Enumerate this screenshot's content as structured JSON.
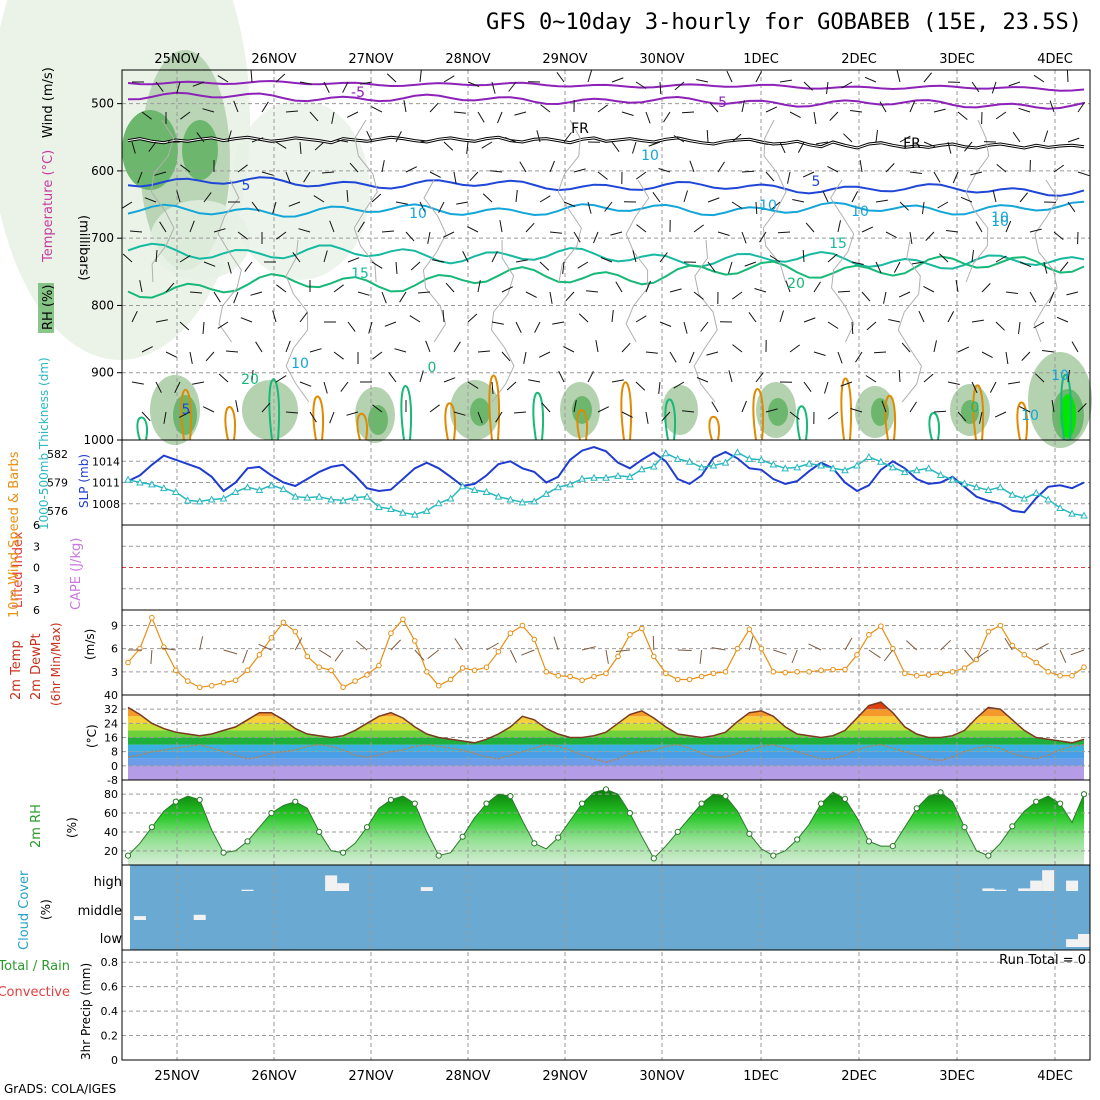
{
  "title": "GFS 0~10day 3-hourly for GOBABEB (15E, 23.5S)",
  "footer": "GrADS: COLA/IGES",
  "date_labels": [
    "25NOV",
    "26NOV",
    "27NOV",
    "28NOV",
    "29NOV",
    "30NOV",
    "1DEC",
    "2DEC",
    "3DEC",
    "4DEC"
  ],
  "colors": {
    "rh_light": "#e6f0e4",
    "rh_mid": "#b4d2b0",
    "rh_dark": "#6db66d",
    "rh_bright": "#00e600",
    "temp_purple": "#8c22b8",
    "temp_blue": "#1f46d6",
    "temp_cyan": "#14a6d8",
    "temp_teal": "#17b9a0",
    "temp_green": "#17b878",
    "temp_orange": "#e08a00",
    "slp": "#1f3ccf",
    "thickness": "#28b8c0",
    "wind10": "#e88f14",
    "cloud_bg": "#6aaad2",
    "cape": "#c878e0",
    "lifted": "#e04040"
  },
  "chart_data": [
    {
      "type": "contour",
      "panel": "upper-air",
      "ylabel_left": [
        "RH (%)",
        "Temperature (°C)",
        "Wind (m/s)"
      ],
      "ylabel_right": "(millibars)",
      "y_ticks": [
        "500",
        "600",
        "700",
        "800",
        "900",
        "1000"
      ],
      "ylim": [
        450,
        1000
      ],
      "contour_labels": [
        "-5",
        "-5",
        "FR",
        "FR",
        "5",
        "5",
        "10",
        "10",
        "10",
        "15",
        "15",
        "20",
        "20",
        "0",
        "5",
        "0",
        "10",
        "10",
        "10",
        "10",
        "10",
        "10"
      ],
      "freezing_level_mb": [
        555,
        552,
        556,
        558,
        554,
        556,
        553,
        551,
        555,
        552,
        550,
        553,
        556,
        554,
        551,
        553,
        555,
        558,
        552,
        554,
        556,
        553,
        550,
        552,
        555,
        557,
        553,
        551,
        554,
        556,
        552,
        550,
        555,
        557,
        553,
        552,
        555,
        558,
        553,
        551,
        556,
        554,
        552,
        555,
        557,
        553,
        551,
        555,
        558,
        560,
        556,
        554,
        553,
        557,
        560,
        559,
        556,
        561,
        564,
        557,
        562,
        566,
        560,
        558,
        562,
        565,
        563,
        565,
        562,
        560,
        564,
        566,
        562,
        560,
        563,
        566,
        562,
        565,
        563,
        562,
        564
      ]
    },
    {
      "type": "line",
      "panel": "slp-thickness",
      "ylabel_left": "1000-500mb Thickness (dm)",
      "ylabel_right": "SLP (mb)",
      "ticks_left": [
        "582",
        "579",
        "576"
      ],
      "ticks_right": [
        "1014",
        "1011",
        "1008"
      ],
      "ylim_slp": [
        1005,
        1017
      ],
      "ylim_thickness": [
        574.5,
        583.5
      ],
      "series": [
        {
          "name": "SLP (mb)",
          "values": [
            1011.2,
            1012.0,
            1013.5,
            1014.8,
            1014.2,
            1013.6,
            1013.0,
            1011.8,
            1009.8,
            1011.0,
            1013.0,
            1013.2,
            1012.0,
            1011.0,
            1010.5,
            1011.5,
            1012.5,
            1013.2,
            1013.5,
            1012.0,
            1010.2,
            1009.8,
            1010.0,
            1011.5,
            1013.0,
            1013.8,
            1013.0,
            1011.8,
            1010.5,
            1010.8,
            1012.0,
            1013.6,
            1014.0,
            1013.0,
            1012.5,
            1011.0,
            1011.8,
            1014.2,
            1015.5,
            1016.0,
            1015.4,
            1013.8,
            1013.0,
            1014.2,
            1015.2,
            1014.0,
            1011.5,
            1010.8,
            1012.0,
            1014.5,
            1015.3,
            1014.4,
            1013.0,
            1012.8,
            1011.5,
            1010.8,
            1011.2,
            1012.6,
            1013.8,
            1013.0,
            1011.0,
            1009.8,
            1010.6,
            1012.8,
            1014.0,
            1013.0,
            1011.5,
            1010.8,
            1011.0,
            1011.8,
            1010.4,
            1009.0,
            1008.4,
            1008.0,
            1007.0,
            1006.8,
            1008.8,
            1010.4,
            1010.6,
            1010.2,
            1011.0
          ]
        },
        {
          "name": "1000-500mb Thickness (dm)",
          "values": [
            579.3,
            579.0,
            578.8,
            578.4,
            578.0,
            577.1,
            577.0,
            577.2,
            577.3,
            578.0,
            578.5,
            578.2,
            578.7,
            578.3,
            577.5,
            577.4,
            577.5,
            577.2,
            577.1,
            577.4,
            577.5,
            576.4,
            576.2,
            575.8,
            575.6,
            576.0,
            576.8,
            577.3,
            578.6,
            578.2,
            578.0,
            577.5,
            577.2,
            576.9,
            577.0,
            577.8,
            578.5,
            578.8,
            579.4,
            579.5,
            579.5,
            579.7,
            579.6,
            580.4,
            580.7,
            582.1,
            581.5,
            581.2,
            580.6,
            580.8,
            581.1,
            582.2,
            581.5,
            581.4,
            580.9,
            580.5,
            580.6,
            581.0,
            580.8,
            580.5,
            580.3,
            580.8,
            581.7,
            581.2,
            580.6,
            580.1,
            580.3,
            580.5,
            579.8,
            579.3,
            578.9,
            578.5,
            578.2,
            578.5,
            577.7,
            577.3,
            577.9,
            577.2,
            576.3,
            575.7,
            575.5
          ]
        }
      ]
    },
    {
      "type": "line",
      "panel": "stability",
      "ylabel_left": "Lifted Index",
      "ylabel_right": "CAPE (J/kg)",
      "y_ticks": [
        "6",
        "3",
        "0",
        "3",
        "6"
      ],
      "ylim": [
        -6,
        6
      ],
      "series": [
        {
          "name": "Lifted Index",
          "values": [
            6,
            6,
            6,
            6,
            6,
            6,
            6,
            6,
            6,
            6,
            6,
            6,
            6,
            6,
            6,
            6,
            6,
            6,
            6,
            6,
            6,
            6,
            6,
            6,
            6,
            6,
            6,
            6,
            6,
            6,
            6,
            6,
            6,
            6,
            6,
            6,
            6,
            6,
            6,
            6,
            6,
            6,
            6,
            6,
            6,
            6,
            6,
            6,
            6,
            6,
            6,
            6,
            6,
            6,
            6,
            6,
            6,
            6,
            6,
            6,
            6,
            6,
            6,
            6,
            6,
            6,
            6,
            6,
            6,
            6,
            6,
            6,
            6,
            6,
            6,
            6,
            6,
            6,
            6,
            6,
            6
          ]
        }
      ]
    },
    {
      "type": "line",
      "panel": "wind10m",
      "ylabel_left": "10m Wind Speed & Barbs",
      "ylabel_right": "(m/s)",
      "y_ticks": [
        "9",
        "6",
        "3"
      ],
      "ylim": [
        0,
        11
      ],
      "series": [
        {
          "name": "10m Wind Speed",
          "values": [
            4.2,
            6.0,
            10.0,
            6.2,
            3.2,
            1.8,
            1.0,
            1.2,
            1.6,
            1.9,
            3.2,
            5.2,
            7.4,
            9.4,
            8.2,
            5.0,
            3.6,
            3.2,
            1.0,
            1.8,
            2.6,
            3.8,
            8.0,
            9.8,
            7.0,
            3.0,
            1.2,
            2.0,
            3.5,
            3.2,
            3.6,
            5.6,
            8.0,
            9.0,
            7.2,
            3.0,
            2.5,
            2.4,
            1.9,
            2.4,
            2.8,
            5.0,
            7.8,
            8.6,
            5.0,
            2.8,
            2.0,
            2.0,
            2.4,
            2.8,
            3.0,
            6.0,
            8.5,
            6.0,
            3.0,
            2.9,
            3.0,
            3.0,
            3.2,
            3.3,
            3.3,
            5.2,
            7.8,
            8.9,
            6.0,
            2.8,
            2.5,
            2.6,
            2.8,
            3.0,
            3.5,
            4.6,
            8.2,
            9.0,
            6.4,
            5.2,
            4.2,
            3.0,
            2.5,
            2.5,
            3.6
          ]
        }
      ]
    },
    {
      "type": "area",
      "panel": "temperature",
      "ylabel_left": [
        "2m Temp",
        "2m DewPt",
        "(6hr Min/Max)"
      ],
      "ylabel_right": "(°C)",
      "y_ticks": [
        "40",
        "32",
        "24",
        "16",
        "8",
        "0",
        "-8"
      ],
      "ylim": [
        -8,
        40
      ],
      "series": [
        {
          "name": "2m Temp",
          "values": [
            33,
            29,
            24,
            21,
            19,
            18,
            17,
            18,
            20,
            22,
            26,
            30,
            30,
            26,
            21,
            18,
            17,
            16,
            17,
            20,
            24,
            28,
            30,
            27,
            22,
            18,
            16,
            15,
            14,
            13,
            15,
            18,
            22,
            28,
            26,
            21,
            18,
            16,
            16,
            17,
            19,
            24,
            29,
            31,
            27,
            22,
            18,
            17,
            16,
            17,
            19,
            25,
            30,
            31,
            28,
            22,
            18,
            17,
            16,
            17,
            20,
            27,
            34,
            36,
            30,
            22,
            18,
            16,
            16,
            17,
            20,
            27,
            33,
            32,
            26,
            20,
            16,
            15,
            14,
            13,
            15
          ]
        },
        {
          "name": "2m DewPt",
          "values": [
            5,
            6,
            8,
            9,
            10,
            11,
            12,
            10,
            8,
            6,
            4,
            5,
            7,
            8,
            9,
            11,
            12,
            11,
            9,
            6,
            5,
            6,
            8,
            9,
            11,
            12,
            11,
            10,
            9,
            7,
            5,
            4,
            6,
            8,
            10,
            12,
            11,
            9,
            6,
            4,
            2,
            4,
            7,
            8,
            9,
            11,
            12,
            10,
            7,
            5,
            5,
            7,
            9,
            11,
            12,
            10,
            8,
            6,
            4,
            4,
            6,
            9,
            11,
            12,
            10,
            8,
            6,
            4,
            3,
            5,
            8,
            10,
            11,
            10,
            7,
            5,
            4,
            6,
            9,
            11,
            12
          ]
        }
      ]
    },
    {
      "type": "area",
      "panel": "relative-humidity",
      "ylabel_left": "2m RH",
      "ylabel_right": "(%)",
      "y_ticks": [
        "80",
        "60",
        "40",
        "20"
      ],
      "ylim": [
        5,
        95
      ],
      "series": [
        {
          "name": "2m RH",
          "values": [
            15,
            28,
            45,
            62,
            72,
            78,
            74,
            42,
            18,
            20,
            30,
            45,
            60,
            68,
            72,
            65,
            40,
            20,
            18,
            28,
            45,
            65,
            74,
            78,
            70,
            40,
            15,
            18,
            35,
            55,
            70,
            80,
            78,
            52,
            28,
            22,
            34,
            52,
            70,
            82,
            85,
            80,
            60,
            35,
            12,
            25,
            40,
            55,
            70,
            80,
            78,
            62,
            38,
            22,
            15,
            20,
            32,
            48,
            70,
            82,
            75,
            55,
            30,
            25,
            25,
            45,
            65,
            78,
            82,
            72,
            45,
            20,
            15,
            28,
            46,
            62,
            72,
            78,
            70,
            50,
            80
          ]
        }
      ]
    },
    {
      "type": "heatmap",
      "panel": "cloud-cover",
      "ylabel_left": "Cloud Cover",
      "ylabel_right": "(%)",
      "y_ticks": [
        "high",
        "middle",
        "low"
      ],
      "high_cloud_pct": [
        0,
        0,
        0,
        0,
        0,
        0,
        0,
        0,
        0,
        0,
        5,
        0,
        0,
        0,
        0,
        0,
        0,
        60,
        30,
        0,
        0,
        0,
        0,
        0,
        0,
        15,
        0,
        0,
        0,
        0,
        0,
        0,
        0,
        0,
        0,
        0,
        0,
        0,
        0,
        0,
        0,
        0,
        0,
        0,
        0,
        0,
        0,
        0,
        0,
        0,
        0,
        0,
        0,
        0,
        0,
        0,
        0,
        0,
        0,
        0,
        0,
        0,
        0,
        0,
        0,
        0,
        0,
        0,
        0,
        0,
        0,
        0,
        10,
        5,
        0,
        10,
        40,
        80,
        0,
        40,
        0
      ],
      "middle_cloud_pct": [
        0,
        15,
        0,
        0,
        0,
        0,
        20,
        0,
        0,
        0,
        0,
        0,
        0,
        0,
        0,
        0,
        0,
        0,
        0,
        0,
        0,
        0,
        0,
        0,
        0,
        0,
        0,
        0,
        0,
        0,
        0,
        0,
        0,
        0,
        0,
        0,
        0,
        0,
        0,
        0,
        0,
        0,
        0,
        0,
        0,
        0,
        0,
        0,
        0,
        0,
        0,
        0,
        0,
        0,
        0,
        0,
        0,
        0,
        0,
        0,
        0,
        0,
        0,
        0,
        0,
        0,
        0,
        0,
        0,
        0,
        0,
        0,
        0,
        0,
        0,
        0,
        0,
        0,
        0,
        0,
        0
      ],
      "low_cloud_pct": [
        0,
        0,
        0,
        0,
        0,
        0,
        0,
        0,
        0,
        0,
        0,
        0,
        0,
        0,
        0,
        0,
        0,
        0,
        0,
        0,
        0,
        0,
        0,
        0,
        0,
        0,
        0,
        0,
        0,
        0,
        0,
        0,
        0,
        0,
        0,
        0,
        0,
        0,
        0,
        0,
        0,
        0,
        0,
        0,
        0,
        0,
        0,
        0,
        0,
        0,
        0,
        0,
        0,
        0,
        0,
        0,
        0,
        0,
        0,
        0,
        0,
        0,
        0,
        0,
        0,
        0,
        0,
        0,
        0,
        0,
        0,
        0,
        0,
        0,
        0,
        0,
        0,
        0,
        0,
        30,
        50
      ]
    },
    {
      "type": "bar",
      "panel": "precipitation",
      "ylabel_left": [
        "Total / Rain",
        "Convective"
      ],
      "ylabel_right": "3hr Precip (mm)",
      "y_ticks": [
        "0.8",
        "0.6",
        "0.4",
        "0.2",
        "0"
      ],
      "ylim": [
        0,
        0.9
      ],
      "run_total": "Run Total = 0",
      "values": [
        0,
        0,
        0,
        0,
        0,
        0,
        0,
        0,
        0,
        0,
        0,
        0,
        0,
        0,
        0,
        0,
        0,
        0,
        0,
        0,
        0,
        0,
        0,
        0,
        0,
        0,
        0,
        0,
        0,
        0,
        0,
        0,
        0,
        0,
        0,
        0,
        0,
        0,
        0,
        0,
        0,
        0,
        0,
        0,
        0,
        0,
        0,
        0,
        0,
        0,
        0,
        0,
        0,
        0,
        0,
        0,
        0,
        0,
        0,
        0,
        0,
        0,
        0,
        0,
        0,
        0,
        0,
        0,
        0,
        0,
        0,
        0,
        0,
        0,
        0,
        0,
        0,
        0,
        0,
        0,
        0
      ]
    }
  ]
}
